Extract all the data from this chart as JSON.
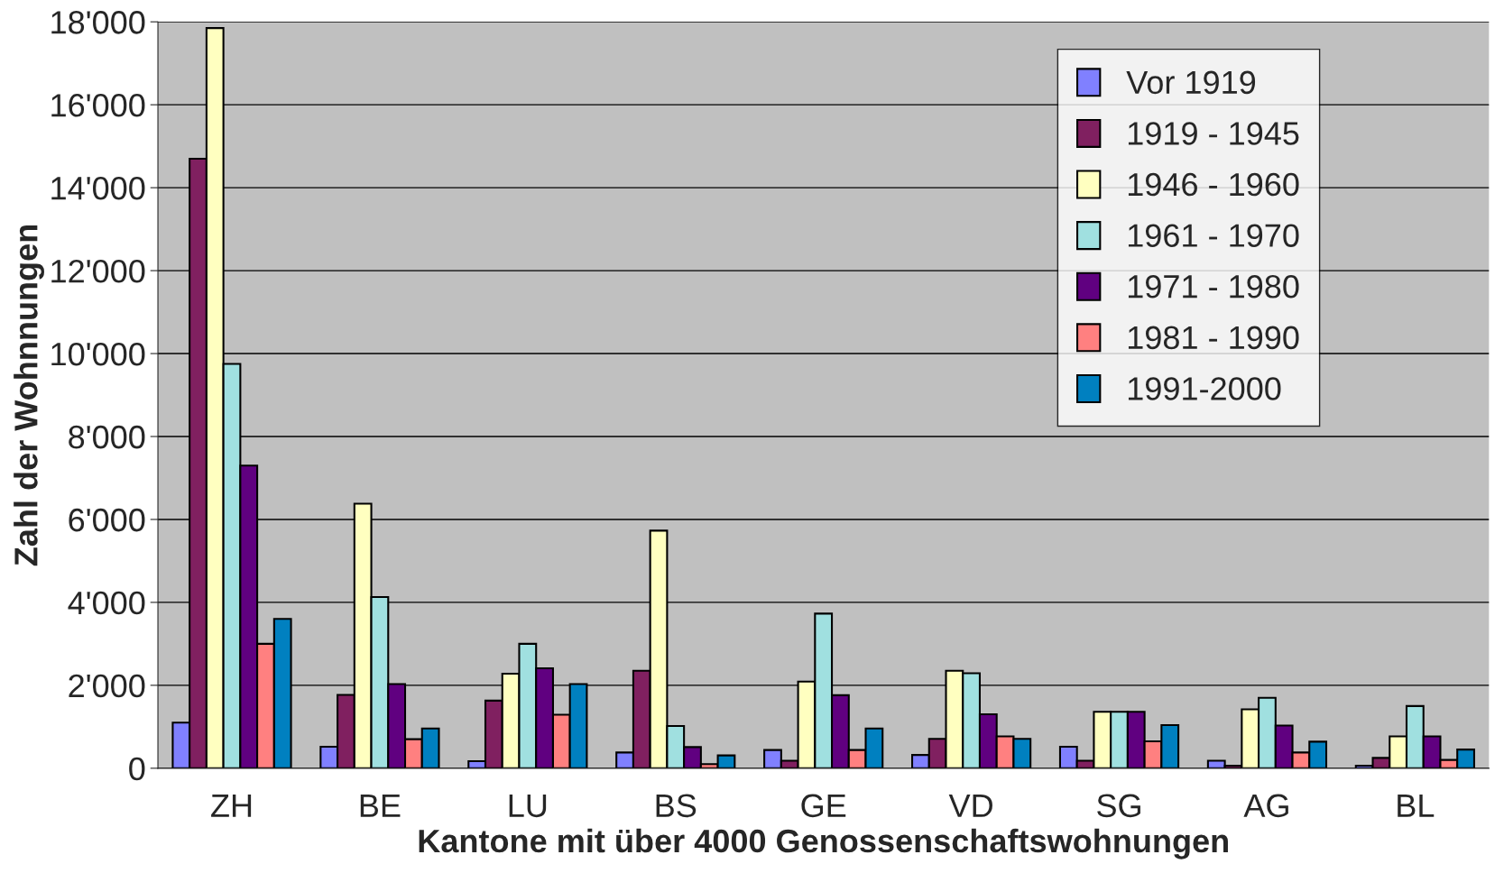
{
  "chart_data": {
    "type": "bar",
    "xlabel": "Kantone mit über 4000 Genossenschaftswohnungen",
    "ylabel": "Zahl der Wohnnungen",
    "categories": [
      "ZH",
      "BE",
      "LU",
      "BS",
      "GE",
      "VD",
      "SG",
      "AG",
      "BL"
    ],
    "series": [
      {
        "name": "Vor 1919",
        "color": "#8080ff",
        "values": [
          1100,
          520,
          170,
          380,
          440,
          320,
          520,
          180,
          60
        ]
      },
      {
        "name": "1919 - 1945",
        "color": "#802060",
        "values": [
          14700,
          1770,
          1630,
          2350,
          180,
          710,
          180,
          60,
          250
        ]
      },
      {
        "name": "1946 - 1960",
        "color": "#ffffc0",
        "values": [
          17850,
          6380,
          2280,
          5730,
          2090,
          2350,
          1360,
          1420,
          770
        ]
      },
      {
        "name": "1961 - 1970",
        "color": "#a0e0e0",
        "values": [
          9750,
          4130,
          3000,
          1020,
          3730,
          2290,
          1360,
          1700,
          1500
        ]
      },
      {
        "name": "1971 - 1980",
        "color": "#600080",
        "values": [
          7300,
          2030,
          2410,
          510,
          1760,
          1300,
          1360,
          1030,
          770
        ]
      },
      {
        "name": "1981 - 1990",
        "color": "#ff8080",
        "values": [
          3000,
          700,
          1290,
          100,
          440,
          770,
          650,
          380,
          200
        ]
      },
      {
        "name": "1991-2000",
        "color": "#0080c0",
        "values": [
          3600,
          960,
          2030,
          310,
          960,
          710,
          1040,
          640,
          450
        ]
      }
    ],
    "ylim": [
      0,
      18000
    ],
    "yticks": [
      {
        "value": 0,
        "label": "0"
      },
      {
        "value": 2000,
        "label": "2'000"
      },
      {
        "value": 4000,
        "label": "4'000"
      },
      {
        "value": 6000,
        "label": "6'000"
      },
      {
        "value": 8000,
        "label": "8'000"
      },
      {
        "value": 10000,
        "label": "10'000"
      },
      {
        "value": 12000,
        "label": "12'000"
      },
      {
        "value": 14000,
        "label": "14'000"
      },
      {
        "value": 16000,
        "label": "16'000"
      },
      {
        "value": 18000,
        "label": "18'000"
      }
    ],
    "grid": "y",
    "legend": "top right"
  }
}
